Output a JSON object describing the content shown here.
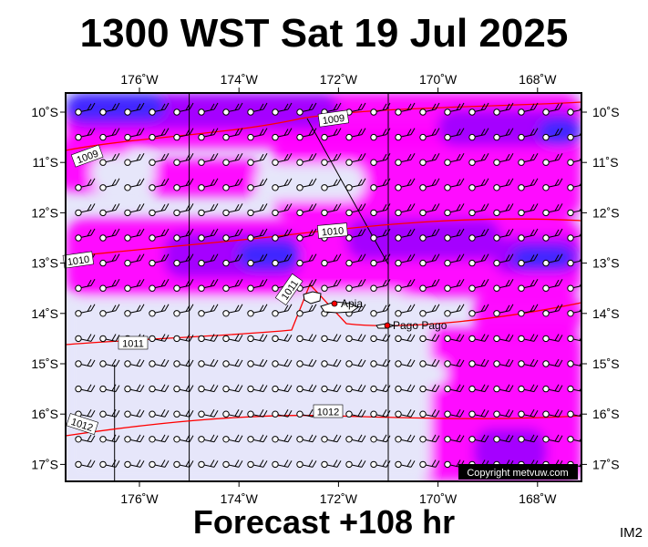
{
  "title": "1300 WST Sat 19 Jul 2025",
  "footer": "Forecast +108 hr",
  "product_code": "IM2",
  "copyright": "Copyright metvuw.com",
  "colors": {
    "light": "#e6e6fa",
    "magenta": "#ff00ff",
    "violet": "#a000ff",
    "blue": "#3c28ff",
    "isobar": "#ff0000",
    "land": "#3cb043"
  },
  "map": {
    "lon_range": [
      -177.3,
      -166.8
    ],
    "lat_range": [
      -17.4,
      -9.7
    ],
    "lon_labels": [
      "176˚W",
      "174˚W",
      "172˚W",
      "170˚W",
      "168˚W"
    ],
    "lat_labels": [
      "10˚S",
      "11˚S",
      "12˚S",
      "13˚S",
      "14˚S",
      "15˚S",
      "16˚S",
      "17˚S"
    ],
    "isobar_labels": [
      "1009",
      "1009",
      "1010",
      "1010",
      "1011",
      "1011",
      "1012",
      "1012"
    ],
    "places": [
      {
        "name": "Apia"
      },
      {
        "name": "Pago Pago"
      }
    ]
  }
}
